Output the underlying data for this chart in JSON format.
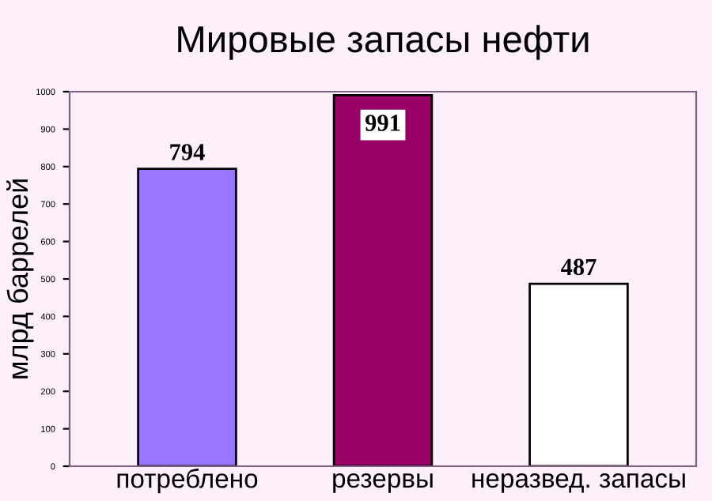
{
  "chart_data": {
    "type": "bar",
    "title": "Мировые запасы нефти",
    "ylabel": "млрд баррелей",
    "categories": [
      "потреблено",
      "резервы",
      "неразвед. запасы"
    ],
    "values": [
      794,
      991,
      487
    ],
    "colors": [
      "#9977ff",
      "#990066",
      "#ffffff"
    ],
    "ylim": [
      0,
      1000
    ],
    "yticks": [
      0,
      100,
      200,
      300,
      400,
      500,
      600,
      700,
      800,
      900,
      1000
    ],
    "grid": false,
    "data_labels": true
  }
}
